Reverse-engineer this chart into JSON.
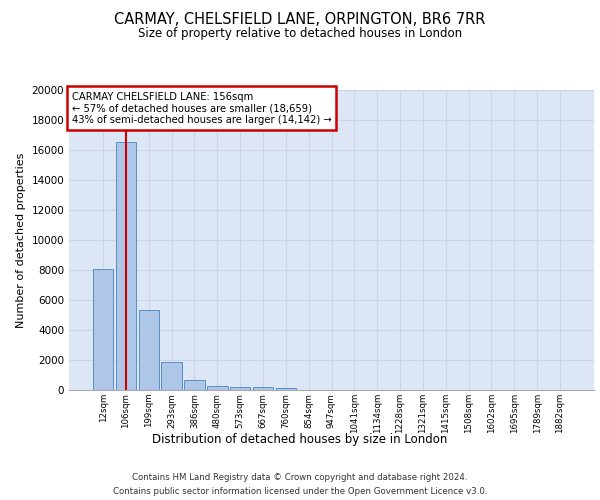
{
  "title_line1": "CARMAY, CHELSFIELD LANE, ORPINGTON, BR6 7RR",
  "title_line2": "Size of property relative to detached houses in London",
  "xlabel": "Distribution of detached houses by size in London",
  "ylabel": "Number of detached properties",
  "categories": [
    "12sqm",
    "106sqm",
    "199sqm",
    "293sqm",
    "386sqm",
    "480sqm",
    "573sqm",
    "667sqm",
    "760sqm",
    "854sqm",
    "947sqm",
    "1041sqm",
    "1134sqm",
    "1228sqm",
    "1321sqm",
    "1415sqm",
    "1508sqm",
    "1602sqm",
    "1695sqm",
    "1789sqm",
    "1882sqm"
  ],
  "values": [
    8050,
    16550,
    5350,
    1850,
    700,
    300,
    210,
    175,
    130,
    0,
    0,
    0,
    0,
    0,
    0,
    0,
    0,
    0,
    0,
    0,
    0
  ],
  "bar_color": "#aec6e8",
  "bar_edge_color": "#5590c8",
  "marker_color": "#cc0000",
  "ylim": [
    0,
    20000
  ],
  "yticks": [
    0,
    2000,
    4000,
    6000,
    8000,
    10000,
    12000,
    14000,
    16000,
    18000,
    20000
  ],
  "annotation_title": "CARMAY CHELSFIELD LANE: 156sqm",
  "annotation_line2": "← 57% of detached houses are smaller (18,659)",
  "annotation_line3": "43% of semi-detached houses are larger (14,142) →",
  "annotation_box_color": "#cc0000",
  "grid_color": "#c8d4e8",
  "background_color": "#dde6f4",
  "footer_line1": "Contains HM Land Registry data © Crown copyright and database right 2024.",
  "footer_line2": "Contains public sector information licensed under the Open Government Licence v3.0."
}
